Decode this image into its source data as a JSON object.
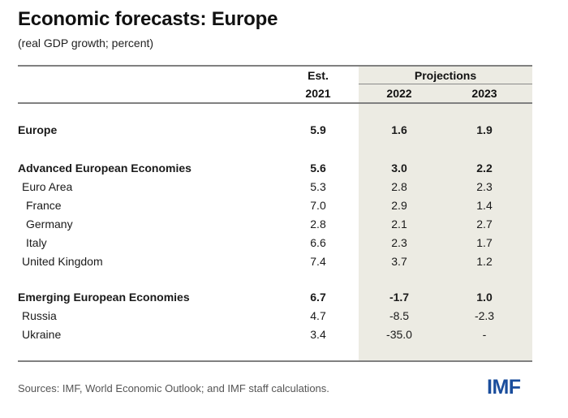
{
  "title": "Economic forecasts: Europe",
  "subtitle": "(real GDP growth; percent)",
  "header": {
    "est_label": "Est.",
    "projections_label": "Projections",
    "years": [
      "2021",
      "2022",
      "2023"
    ]
  },
  "rows": [
    {
      "label": "Europe",
      "v2021": "5.9",
      "v2022": "1.6",
      "v2023": "1.9",
      "bold": true,
      "indent": 0
    },
    {
      "label": "Advanced European Economies",
      "v2021": "5.6",
      "v2022": "3.0",
      "v2023": "2.2",
      "bold": true,
      "indent": 0
    },
    {
      "label": "Euro Area",
      "v2021": "5.3",
      "v2022": "2.8",
      "v2023": "2.3",
      "bold": false,
      "indent": 1
    },
    {
      "label": "France",
      "v2021": "7.0",
      "v2022": "2.9",
      "v2023": "1.4",
      "bold": false,
      "indent": 2
    },
    {
      "label": "Germany",
      "v2021": "2.8",
      "v2022": "2.1",
      "v2023": "2.7",
      "bold": false,
      "indent": 2
    },
    {
      "label": "Italy",
      "v2021": "6.6",
      "v2022": "2.3",
      "v2023": "1.7",
      "bold": false,
      "indent": 2
    },
    {
      "label": "United Kingdom",
      "v2021": "7.4",
      "v2022": "3.7",
      "v2023": "1.2",
      "bold": false,
      "indent": 1
    },
    {
      "label": "Emerging European Economies",
      "v2021": "6.7",
      "v2022": "-1.7",
      "v2023": "1.0",
      "bold": true,
      "indent": 0
    },
    {
      "label": "Russia",
      "v2021": "4.7",
      "v2022": "-8.5",
      "v2023": "-2.3",
      "bold": false,
      "indent": 1
    },
    {
      "label": "Ukraine",
      "v2021": "3.4",
      "v2022": "-35.0",
      "v2023": "-",
      "bold": false,
      "indent": 1
    }
  ],
  "footer": {
    "sources": "Sources: IMF, World Economic Outlook; and IMF staff calculations.",
    "logo_text": "IMF",
    "logo_color": "#1a4d9c"
  },
  "colors": {
    "projection_shade": "#ecebe3"
  }
}
